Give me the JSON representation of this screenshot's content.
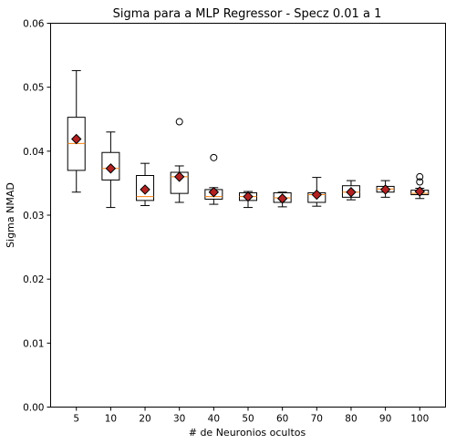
{
  "chart_data": {
    "type": "box",
    "title": "Sigma para a MLP Regressor - Specz 0.01 a 1",
    "xlabel": "# de Neuronios ocultos",
    "ylabel": "Sigma NMAD",
    "ylim": [
      0,
      0.06
    ],
    "yticks": [
      "0.00",
      "0.01",
      "0.02",
      "0.03",
      "0.04",
      "0.05",
      "0.06"
    ],
    "yticks_values": [
      0,
      0.01,
      0.02,
      0.03,
      0.04,
      0.05,
      0.06
    ],
    "grid": false,
    "categories": [
      "5",
      "10",
      "20",
      "30",
      "40",
      "50",
      "60",
      "70",
      "80",
      "90",
      "100"
    ],
    "boxes": [
      {
        "whisker_low": 0.0336,
        "q1": 0.037,
        "median": 0.0412,
        "q3": 0.0453,
        "whisker_high": 0.0526,
        "mean": 0.0419,
        "outliers": []
      },
      {
        "whisker_low": 0.0312,
        "q1": 0.0355,
        "median": 0.0373,
        "q3": 0.0398,
        "whisker_high": 0.043,
        "mean": 0.0373,
        "outliers": []
      },
      {
        "whisker_low": 0.0315,
        "q1": 0.0323,
        "median": 0.0329,
        "q3": 0.0362,
        "whisker_high": 0.0381,
        "mean": 0.034,
        "outliers": []
      },
      {
        "whisker_low": 0.032,
        "q1": 0.0334,
        "median": 0.036,
        "q3": 0.0367,
        "whisker_high": 0.0377,
        "mean": 0.036,
        "outliers": [
          0.0446
        ]
      },
      {
        "whisker_low": 0.0317,
        "q1": 0.0325,
        "median": 0.0329,
        "q3": 0.034,
        "whisker_high": 0.0343,
        "mean": 0.0336,
        "outliers": [
          0.039
        ]
      },
      {
        "whisker_low": 0.0312,
        "q1": 0.0323,
        "median": 0.0329,
        "q3": 0.0335,
        "whisker_high": 0.0337,
        "mean": 0.0329,
        "outliers": []
      },
      {
        "whisker_low": 0.0313,
        "q1": 0.032,
        "median": 0.0327,
        "q3": 0.0335,
        "whisker_high": 0.0336,
        "mean": 0.0326,
        "outliers": []
      },
      {
        "whisker_low": 0.0314,
        "q1": 0.032,
        "median": 0.0332,
        "q3": 0.0335,
        "whisker_high": 0.0359,
        "mean": 0.0332,
        "outliers": []
      },
      {
        "whisker_low": 0.0324,
        "q1": 0.0328,
        "median": 0.0336,
        "q3": 0.0346,
        "whisker_high": 0.0354,
        "mean": 0.0336,
        "outliers": []
      },
      {
        "whisker_low": 0.0328,
        "q1": 0.0336,
        "median": 0.0341,
        "q3": 0.0345,
        "whisker_high": 0.0354,
        "mean": 0.034,
        "outliers": []
      },
      {
        "whisker_low": 0.0326,
        "q1": 0.0332,
        "median": 0.0334,
        "q3": 0.0339,
        "whisker_high": 0.0342,
        "mean": 0.0337,
        "outliers": [
          0.0352,
          0.036
        ]
      }
    ],
    "colors": {
      "box": "#000000",
      "median": "#ff7f0e",
      "mean_fill": "#b22222",
      "mean_edge": "#000000"
    }
  }
}
